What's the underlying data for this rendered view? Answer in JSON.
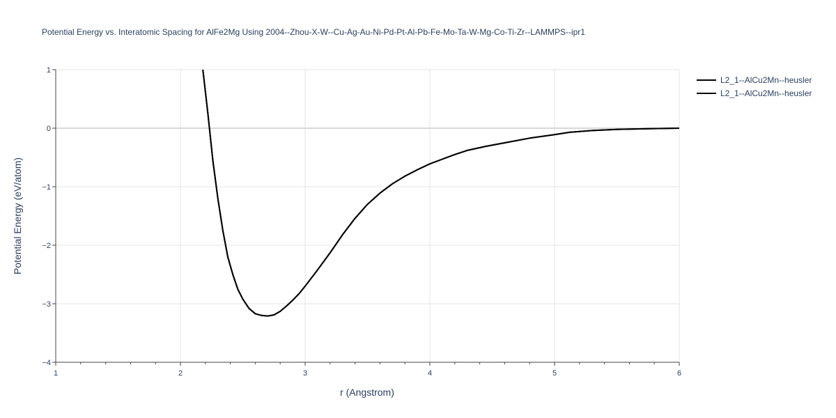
{
  "chart_data": {
    "type": "line",
    "title": "Potential Energy vs. Interatomic Spacing for AlFe2Mg Using 2004--Zhou-X-W--Cu-Ag-Au-Ni-Pd-Pt-Al-Pb-Fe-Mo-Ta-W-Mg-Co-Ti-Zr--LAMMPS--ipr1",
    "xlabel": "r (Angstrom)",
    "ylabel": "Potential Energy (eV/atom)",
    "xlim": [
      1,
      6
    ],
    "ylim": [
      -4,
      1
    ],
    "x_ticks": [
      "1",
      "2",
      "3",
      "4",
      "5",
      "6"
    ],
    "y_ticks": [
      "1",
      "0",
      "−1",
      "−2",
      "−3",
      "−4"
    ],
    "grid": true,
    "legend_position": "top-right",
    "series": [
      {
        "name": "L2_1--AlCu2Mn--heusler",
        "color": "#000000",
        "x": [
          2.18,
          2.22,
          2.26,
          2.3,
          2.34,
          2.38,
          2.42,
          2.46,
          2.5,
          2.55,
          2.6,
          2.65,
          2.7,
          2.75,
          2.8,
          2.85,
          2.9,
          2.95,
          3.0,
          3.1,
          3.2,
          3.3,
          3.4,
          3.5,
          3.6,
          3.7,
          3.8,
          3.9,
          4.0,
          4.1,
          4.2,
          4.3,
          4.45,
          4.6,
          4.8,
          5.0,
          5.12,
          5.3,
          5.5,
          5.75,
          6.0
        ],
        "y": [
          1.0,
          0.25,
          -0.55,
          -1.2,
          -1.75,
          -2.2,
          -2.5,
          -2.75,
          -2.92,
          -3.08,
          -3.17,
          -3.2,
          -3.21,
          -3.19,
          -3.13,
          -3.04,
          -2.94,
          -2.83,
          -2.7,
          -2.42,
          -2.13,
          -1.82,
          -1.54,
          -1.3,
          -1.11,
          -0.95,
          -0.82,
          -0.71,
          -0.61,
          -0.53,
          -0.45,
          -0.38,
          -0.31,
          -0.25,
          -0.17,
          -0.11,
          -0.07,
          -0.04,
          -0.02,
          -0.01,
          0.0
        ]
      },
      {
        "name": "L2_1--AlCu2Mn--heusler",
        "color": "#000000",
        "x": [
          2.18,
          2.22,
          2.26,
          2.3,
          2.34,
          2.38,
          2.42,
          2.46,
          2.5,
          2.55,
          2.6,
          2.65,
          2.7,
          2.75,
          2.8,
          2.85,
          2.9,
          2.95,
          3.0,
          3.1,
          3.2,
          3.3,
          3.4,
          3.5,
          3.6,
          3.7,
          3.8,
          3.9,
          4.0,
          4.1,
          4.2,
          4.3,
          4.45,
          4.6,
          4.8,
          5.0,
          5.12,
          5.3,
          5.5,
          5.75,
          6.0
        ],
        "y": [
          1.0,
          0.25,
          -0.55,
          -1.2,
          -1.75,
          -2.2,
          -2.5,
          -2.75,
          -2.92,
          -3.08,
          -3.17,
          -3.2,
          -3.21,
          -3.19,
          -3.13,
          -3.04,
          -2.94,
          -2.83,
          -2.7,
          -2.42,
          -2.13,
          -1.82,
          -1.54,
          -1.3,
          -1.11,
          -0.95,
          -0.82,
          -0.71,
          -0.61,
          -0.53,
          -0.45,
          -0.38,
          -0.31,
          -0.25,
          -0.17,
          -0.11,
          -0.07,
          -0.04,
          -0.02,
          -0.01,
          0.0
        ]
      }
    ]
  }
}
